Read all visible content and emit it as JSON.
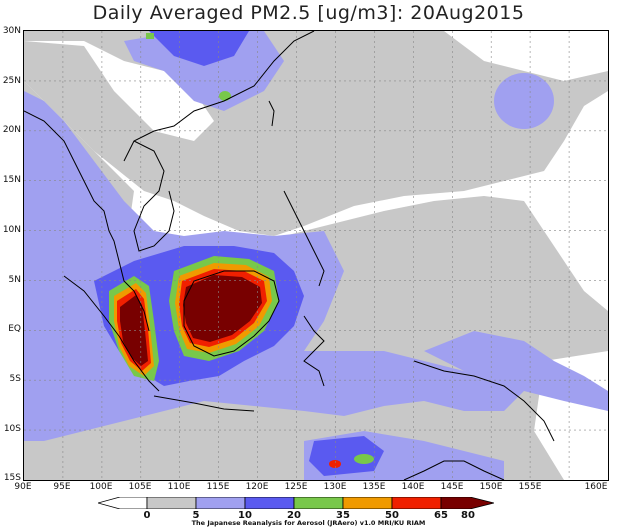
{
  "title": "Daily Averaged PM2.5 [ug/m3]: 20Aug2015",
  "lat_labels": [
    "30N",
    "25N",
    "20N",
    "15N",
    "10N",
    "5N",
    "EQ",
    "5S",
    "10S",
    "15S"
  ],
  "lon_labels": [
    "90E",
    "95E",
    "100E",
    "105E",
    "110E",
    "115E",
    "120E",
    "125E",
    "130E",
    "135E",
    "140E",
    "145E",
    "150E",
    "155E",
    "160E"
  ],
  "colorbar": {
    "labels": [
      "0",
      "5",
      "10",
      "20",
      "35",
      "50",
      "65",
      "80"
    ],
    "colors": [
      "#ffffff",
      "#c8c8c8",
      "#a0a0f0",
      "#5a5af0",
      "#78c84a",
      "#f09a00",
      "#f02000",
      "#780000"
    ]
  },
  "credit": "The Japanese Reanalysis for Aerosol (JRAero) v1.0 MRI/KU RIAM",
  "legend_colors": {
    "light_gray": "#c8c8c8",
    "lavender": "#a0a0f0",
    "blue": "#5a5af0",
    "green": "#78c84a",
    "orange": "#f09a00",
    "red": "#f02000",
    "dark_red": "#780000"
  }
}
